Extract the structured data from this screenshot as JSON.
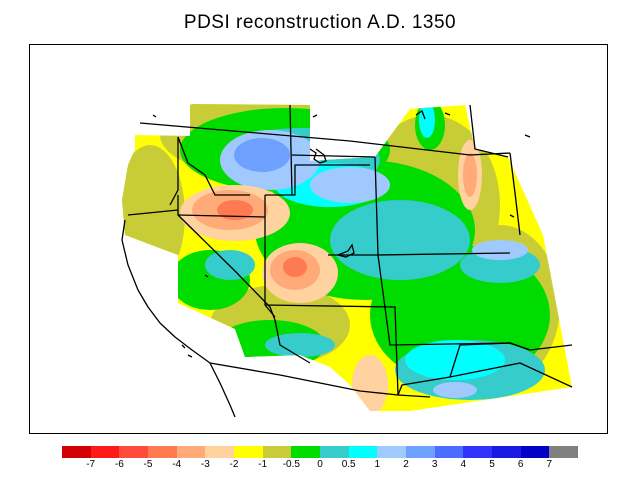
{
  "title": "PDSI reconstruction A.D. 1350",
  "map": {
    "region": "Western United States",
    "variable": "PDSI",
    "year": "A.D. 1350",
    "background_color": "#ffffff",
    "border_color": "#000000"
  },
  "legend": {
    "colors": [
      "#d20000",
      "#ff1a1a",
      "#ff4a3d",
      "#ff7a50",
      "#ffaa78",
      "#ffd2a0",
      "#ffff00",
      "#c8cc37",
      "#00dc00",
      "#36cccc",
      "#00ffff",
      "#a0caff",
      "#6ea0ff",
      "#4a6cff",
      "#3232ff",
      "#1a1ae6",
      "#0000c8",
      "#808080"
    ],
    "labels": [
      "-7",
      "-6",
      "-5",
      "-4",
      "-3",
      "-2",
      "-1",
      "-0.5",
      "0",
      "0.5",
      "1",
      "2",
      "3",
      "4",
      "5",
      "6",
      "7"
    ]
  }
}
